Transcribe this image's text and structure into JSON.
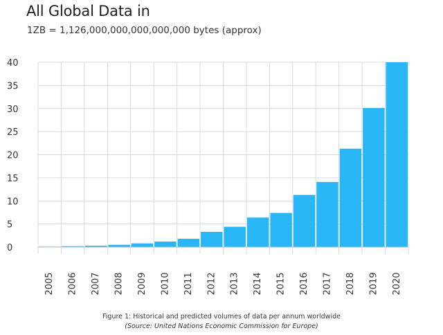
{
  "header": {
    "title": "All Global Data in",
    "subtitle": "1ZB = 1,126,000,000,000,000,000 bytes (approx)"
  },
  "caption": {
    "line1": "Figure 1: Historical and predicted volumes of data per annum worldwide",
    "line2": "(Source: United Nations Economic Commission for Europe)"
  },
  "colors": {
    "bar": "#29b6f6",
    "grid": "#d9d9d9",
    "axis": "#bfbfbf"
  },
  "chart_data": {
    "type": "bar",
    "categories": [
      "2005",
      "2006",
      "2007",
      "2008",
      "2009",
      "2010",
      "2011",
      "2012",
      "2013",
      "2014",
      "2015",
      "2016",
      "2017",
      "2018",
      "2019",
      "2020"
    ],
    "values": [
      0.1,
      0.2,
      0.3,
      0.5,
      0.8,
      1.2,
      1.8,
      3.3,
      4.4,
      6.4,
      7.4,
      11.3,
      14.1,
      21.3,
      30.1,
      40.0
    ],
    "ylim": [
      0,
      40
    ],
    "yticks": [
      0,
      5,
      10,
      15,
      20,
      25,
      30,
      35,
      40
    ],
    "xlabel": "",
    "ylabel": "",
    "grid": true
  }
}
